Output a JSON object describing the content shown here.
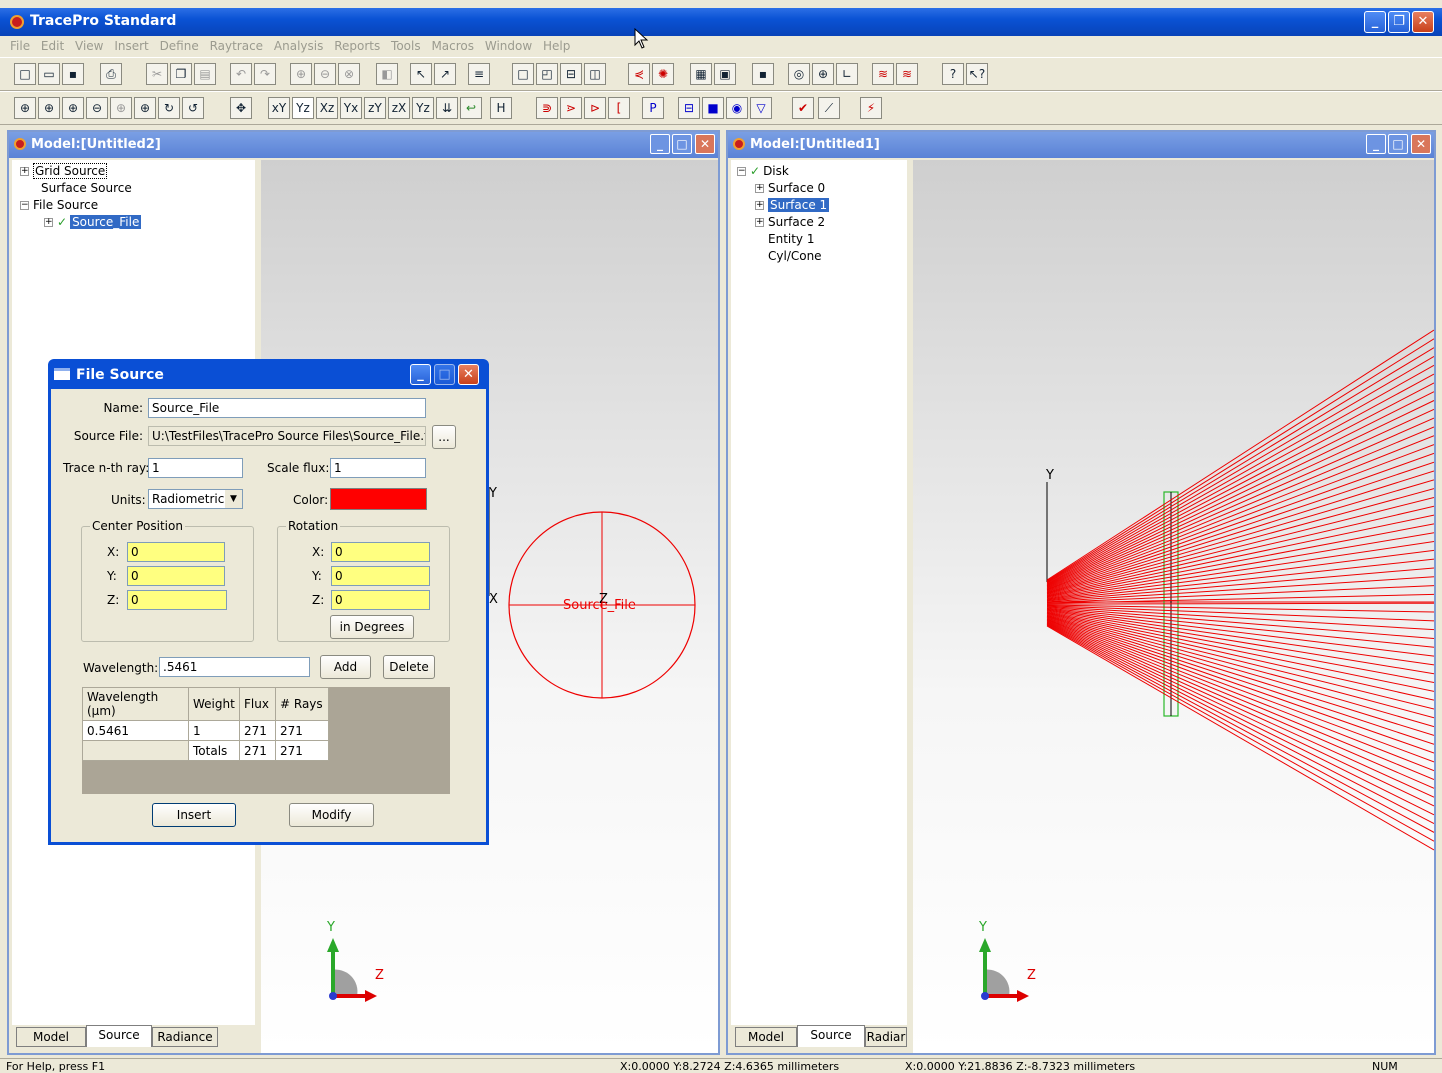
{
  "app": {
    "title": "TracePro Standard"
  },
  "menu": [
    "File",
    "Edit",
    "View",
    "Insert",
    "Define",
    "Raytrace",
    "Analysis",
    "Reports",
    "Tools",
    "Macros",
    "Window",
    "Help"
  ],
  "win_left": {
    "title": "Model:[Untitled2]",
    "tree": [
      {
        "label": "Grid Source",
        "expander": "+"
      },
      {
        "label": "Surface Source",
        "expander": ""
      },
      {
        "label": "File Source",
        "expander": "−"
      },
      {
        "label": "Source_File",
        "expander": "+"
      }
    ],
    "tabs": [
      "Model",
      "Source",
      "Radiance"
    ],
    "view": {
      "axis_y": "Y",
      "axis_x": "X",
      "axis_z": "Z",
      "circle_label": "Source_File",
      "triad_y": "Y",
      "triad_z": "Z"
    }
  },
  "win_right": {
    "title": "Model:[Untitled1]",
    "tree": [
      {
        "label": "Disk",
        "expander": "−"
      },
      {
        "label": "Surface 0",
        "expander": "+"
      },
      {
        "label": "Surface 1",
        "expander": "+"
      },
      {
        "label": "Surface 2",
        "expander": "+"
      },
      {
        "label": "Entity 1",
        "expander": ""
      },
      {
        "label": "Cyl/Cone",
        "expander": ""
      }
    ],
    "tabs": [
      "Model",
      "Source",
      "Radiar"
    ],
    "view": {
      "axis_y": "Y",
      "triad_y": "Y",
      "triad_z": "Z"
    }
  },
  "dialog": {
    "title": "File Source",
    "name_label": "Name:",
    "name_value": "Source_File",
    "source_file_label": "Source File:",
    "source_file_value": "U:\\TestFiles\\TracePro Source Files\\Source_File.txt",
    "browse": "...",
    "trace_label": "Trace n-th ray:",
    "trace_value": "1",
    "scale_label": "Scale flux:",
    "scale_value": "1",
    "units_label": "Units:",
    "units_value": "Radiometric",
    "color_label": "Color:",
    "color": "#ff0000",
    "center": {
      "label": "Center Position",
      "x_label": "X:",
      "x": "0",
      "y_label": "Y:",
      "y": "0",
      "z_label": "Z:",
      "z": "0"
    },
    "rotation": {
      "label": "Rotation",
      "x_label": "X:",
      "x": "0",
      "y_label": "Y:",
      "y": "0",
      "z_label": "Z:",
      "z": "0",
      "units_button": "in Degrees"
    },
    "wavelength_label": "Wavelength:",
    "wavelength_value": ".5461",
    "add": "Add",
    "delete": "Delete",
    "table": {
      "headers": [
        "Wavelength (µm)",
        "Weight",
        "Flux",
        "# Rays"
      ],
      "rows": [
        [
          "0.5461",
          "1",
          "271",
          "271"
        ],
        [
          "",
          "Totals",
          "271",
          "271"
        ]
      ]
    },
    "insert": "Insert",
    "modify": "Modify"
  },
  "status": {
    "help": "For Help, press F1",
    "coords1": "X:0.0000 Y:8.2724 Z:4.6365 millimeters",
    "coords2": "X:0.0000 Y:21.8836 Z:-8.7323 millimeters",
    "num": "NUM"
  }
}
